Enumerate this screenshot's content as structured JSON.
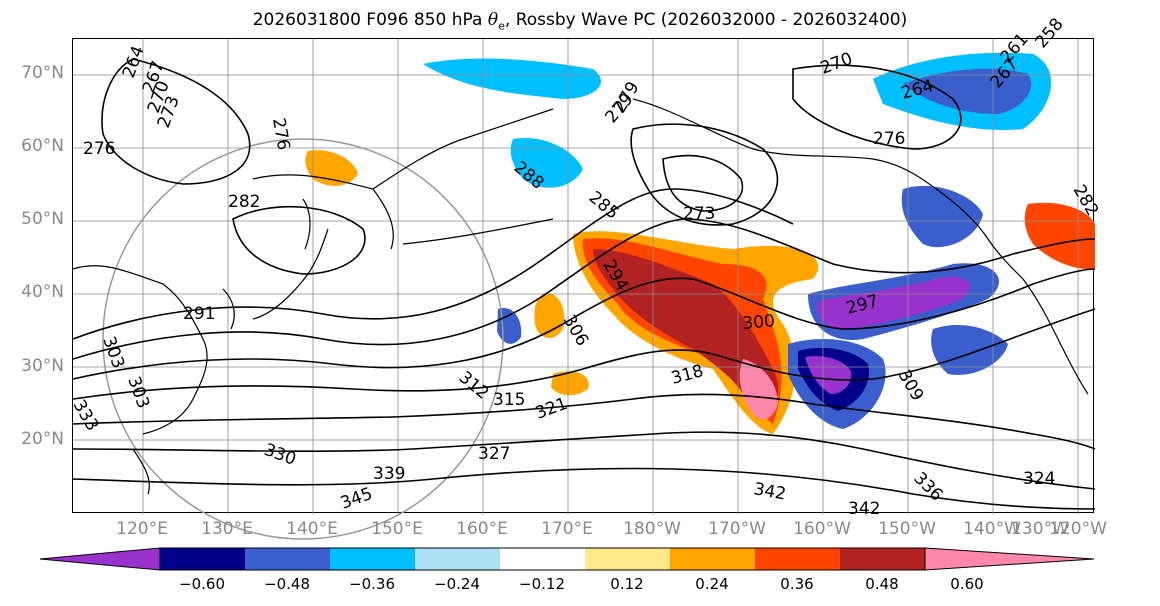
{
  "title": {
    "prefix": "2026031800 F096 850 hPa ",
    "symbol": "θ",
    "subscript": "e",
    "suffix": ", Rossby Wave PC (2026032000 - 2026032400)"
  },
  "lat_labels": [
    "70°N",
    "60°N",
    "50°N",
    "40°N",
    "30°N",
    "20°N"
  ],
  "lon_labels": [
    "120°E",
    "130°E",
    "140°E",
    "150°E",
    "160°E",
    "170°E",
    "180°W",
    "170°W",
    "160°W",
    "150°W",
    "140°W",
    "130°W",
    "120°W"
  ],
  "colorbar": {
    "ticks": [
      "−0.60",
      "−0.48",
      "−0.36",
      "−0.24",
      "−0.12",
      "0.12",
      "0.24",
      "0.36",
      "0.48",
      "0.60"
    ],
    "colors": [
      "#9932cc",
      "#00008b",
      "#3a5fcd",
      "#00bfff",
      "#ade0f7",
      "#ffffff",
      "#ffe88a",
      "#ffa500",
      "#ff4500",
      "#b22222",
      "#ff88aa"
    ]
  },
  "contour_labels": [
    "264",
    "267",
    "270",
    "273",
    "276",
    "276",
    "279",
    "282",
    "285",
    "288",
    "294",
    "297",
    "300",
    "306",
    "309",
    "312",
    "315",
    "318",
    "321",
    "324",
    "327",
    "330",
    "336",
    "339",
    "342",
    "258",
    "261",
    "264",
    "267",
    "270",
    "273",
    "276",
    "279",
    "282",
    "291",
    "303",
    "303",
    "333",
    "345",
    "342"
  ],
  "colors": {
    "coast": "#000000",
    "grid": "#8c8c8c",
    "contour": "#000000",
    "axis_text": "#8a8a8a"
  }
}
